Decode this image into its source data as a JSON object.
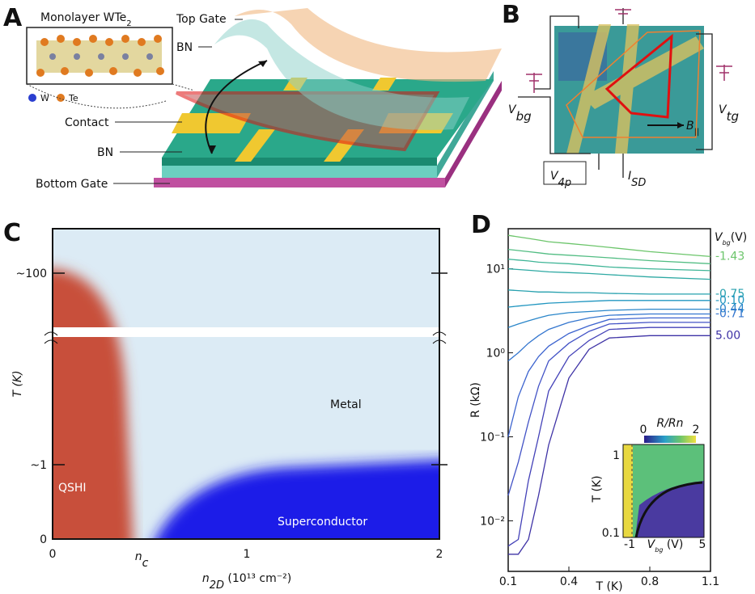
{
  "panels": {
    "a": {
      "letter": "A",
      "inset_title": {
        "main": "Monolayer WTe",
        "sub": "2"
      },
      "legend": [
        "W",
        "Te"
      ],
      "labels": {
        "top_gate": "Top Gate",
        "bn_top": "BN",
        "contact": "Contact",
        "bn_bottom": "BN",
        "bottom_gate": "Bottom Gate"
      }
    },
    "b": {
      "letter": "B",
      "v_bg": {
        "main": "V",
        "sub": "bg"
      },
      "v_tg": {
        "main": "V",
        "sub": "tg"
      },
      "v_4p": {
        "main": "V",
        "sub": "4p"
      },
      "i_sd": {
        "main": "I",
        "sub": "SD"
      },
      "b_par": {
        "main": "B",
        "sub": "||"
      }
    },
    "c": {
      "letter": "C",
      "y_ticks": [
        "~100",
        "~1",
        "0"
      ],
      "y_label": "T (K)",
      "x_ticks": [
        "0",
        "1",
        "2"
      ],
      "n_c": {
        "main": "n",
        "sub": "c"
      },
      "x_label": {
        "main": "n",
        "sub": "2D",
        "unit": " (10¹³ cm⁻²)"
      },
      "regions": [
        "QSHI",
        "Metal",
        "Superconductor"
      ]
    },
    "d_inset": {
      "title": "R/Rn",
      "color_ticks": [
        "0",
        "2"
      ],
      "y_label": "T (K)",
      "y_ticks": [
        "1",
        "0.1"
      ],
      "x_ticks": [
        "-1",
        "5"
      ],
      "x_label": {
        "main": "V",
        "sub": "bg",
        "unit": " (V)"
      }
    }
  },
  "chart_data": {
    "type": "line",
    "letter": "D",
    "x_label": "T (K)",
    "y_label": "R (kΩ)",
    "legend_title": {
      "main": "V",
      "sub": "bg",
      "unit": "(V)"
    },
    "log_y": true,
    "xlim": [
      0.1,
      1.1
    ],
    "xticks": [
      0.1,
      0.4,
      0.8,
      1.1
    ],
    "ylim": [
      0.0025,
      30
    ],
    "yticks": [
      {
        "value": 0.01,
        "label": "10⁻²"
      },
      {
        "value": 0.1,
        "label": "10⁻¹"
      },
      {
        "value": 1,
        "label": "10⁰"
      },
      {
        "value": 10,
        "label": "10¹"
      }
    ],
    "x": [
      0.1,
      0.15,
      0.2,
      0.25,
      0.3,
      0.4,
      0.5,
      0.6,
      0.8,
      1.1
    ],
    "series": [
      {
        "name": "-1.43",
        "color": "#6cc56b",
        "values": [
          25,
          24,
          23,
          22,
          21,
          20,
          19,
          18,
          16,
          14
        ]
      },
      {
        "color": "#52bd83",
        "values": [
          17,
          16.5,
          16,
          15.5,
          15,
          14.5,
          14,
          13.5,
          12.5,
          11.5
        ]
      },
      {
        "color": "#3fb597",
        "values": [
          13,
          12.7,
          12.4,
          12,
          11.8,
          11.5,
          11,
          10.5,
          10,
          9.5
        ]
      },
      {
        "color": "#2ea9a3",
        "values": [
          10,
          9.8,
          9.6,
          9.4,
          9.2,
          9,
          8.8,
          8.5,
          8,
          7.5
        ]
      },
      {
        "name": "-0.75",
        "color": "#26a0ae",
        "values": [
          5.6,
          5.5,
          5.4,
          5.3,
          5.3,
          5.2,
          5.2,
          5.1,
          5,
          5
        ]
      },
      {
        "name": "-0.10",
        "color": "#2196c0",
        "values": [
          3.5,
          3.6,
          3.7,
          3.8,
          3.9,
          4,
          4.1,
          4.2,
          4.2,
          4.2
        ]
      },
      {
        "name": "-0.44",
        "color": "#2a86c9",
        "values": [
          2,
          2.2,
          2.4,
          2.6,
          2.8,
          3,
          3.1,
          3.2,
          3.3,
          3.3
        ]
      },
      {
        "name": "-0.71",
        "color": "#3476cf",
        "values": [
          0.8,
          1,
          1.3,
          1.6,
          1.9,
          2.3,
          2.6,
          2.8,
          2.9,
          2.9
        ]
      },
      {
        "color": "#3d64cf",
        "values": [
          0.1,
          0.3,
          0.6,
          0.9,
          1.2,
          1.7,
          2.1,
          2.5,
          2.6,
          2.6
        ]
      },
      {
        "color": "#4353c6",
        "values": [
          0.02,
          0.05,
          0.15,
          0.4,
          0.8,
          1.3,
          1.8,
          2.2,
          2.3,
          2.3
        ]
      },
      {
        "color": "#4442b8",
        "values": [
          0.005,
          0.006,
          0.03,
          0.1,
          0.35,
          0.9,
          1.4,
          1.9,
          2,
          2
        ]
      },
      {
        "name": "5.00",
        "color": "#3f33a6",
        "values": [
          0.004,
          0.004,
          0.006,
          0.02,
          0.08,
          0.5,
          1.1,
          1.5,
          1.6,
          1.6
        ]
      }
    ]
  }
}
